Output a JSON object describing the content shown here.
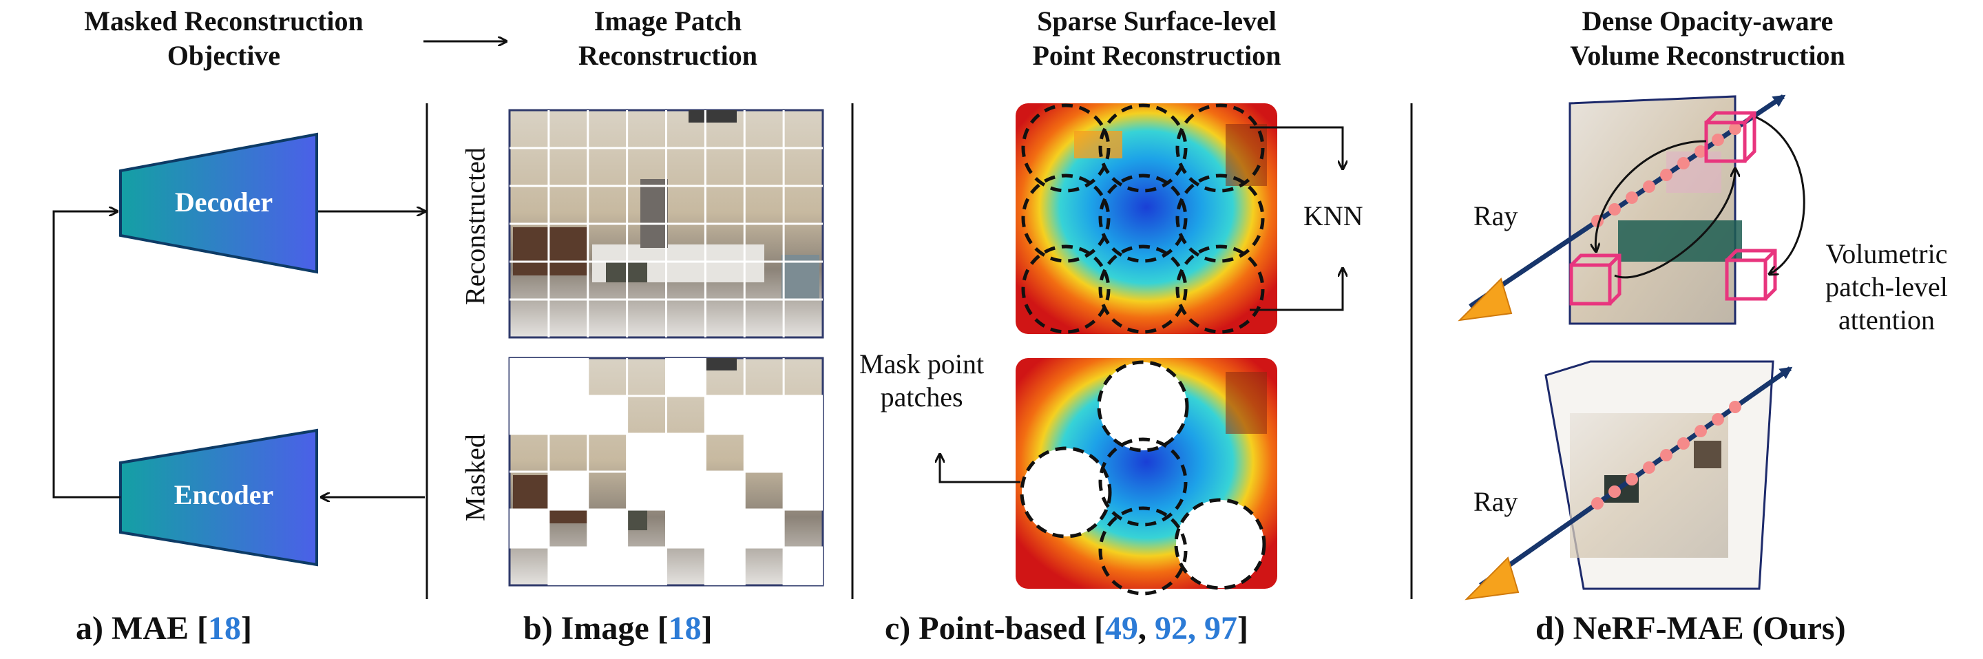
{
  "headers": {
    "mae": [
      "Masked Reconstruction",
      "Objective"
    ],
    "image": [
      "Image Patch",
      "Reconstruction"
    ],
    "point": [
      "Sparse Surface-level",
      "Point Reconstruction"
    ],
    "nerf": [
      "Dense Opacity-aware",
      "Volume Reconstruction"
    ]
  },
  "blocks": {
    "decoder": "Decoder",
    "encoder": "Encoder"
  },
  "side_labels": {
    "reconstructed": "Reconstructed",
    "masked": "Masked"
  },
  "point_labels": {
    "knn": "KNN",
    "mask_point_patches": [
      "Mask point",
      "patches"
    ]
  },
  "nerf_labels": {
    "ray_top": "Ray",
    "ray_bottom": "Ray",
    "attention": [
      "Volumetric",
      "patch-level",
      "attention"
    ]
  },
  "captions": {
    "a": {
      "prefix": "a) MAE [",
      "cite": "18",
      "suffix": "]"
    },
    "b": {
      "prefix": "b) Image [",
      "cite": "18",
      "suffix": "]"
    },
    "c": {
      "prefix": "c) Point-based [",
      "cite_a": "49",
      "sep": ", ",
      "cite_b": "92, 97",
      "suffix": "]"
    },
    "d": {
      "text": "d) NeRF-MAE (Ours)"
    }
  },
  "colors": {
    "block_gradient_start": "#1aa3a8",
    "block_gradient_end": "#4a63e6",
    "citation": "#2c7bd6",
    "ray": "#17356b",
    "cube": "#e8357e",
    "dots": "#f58a8a",
    "cone": "#f6a21c"
  },
  "icons": [
    "decoder-trapezoid",
    "encoder-trapezoid",
    "ray-arrow-icon",
    "cube-icon",
    "cone-icon"
  ]
}
